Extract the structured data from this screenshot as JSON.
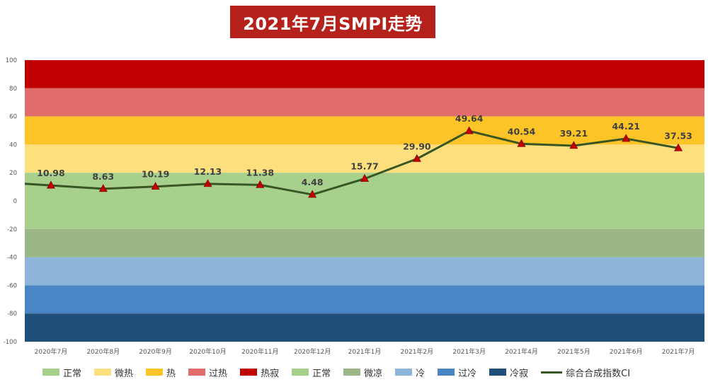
{
  "title": "2021年7月SMPI走势",
  "chart_data": {
    "type": "line",
    "categories": [
      "2020年7月",
      "2020年8月",
      "2020年9月",
      "2020年10月",
      "2020年11月",
      "2020年12月",
      "2021年1月",
      "2021年2月",
      "2021年3月",
      "2021年4月",
      "2021年5月",
      "2021年6月",
      "2021年7月"
    ],
    "series": [
      {
        "name": "综合合成指数CI",
        "values": [
          10.98,
          8.63,
          10.19,
          12.13,
          11.38,
          4.48,
          15.77,
          29.9,
          49.64,
          40.54,
          39.21,
          44.21,
          37.53
        ],
        "color": "#375623",
        "marker_color": "#c00000"
      }
    ],
    "data_labels": [
      "10.98",
      "8.63",
      "10.19",
      "12.13",
      "11.38",
      "4.48",
      "15.77",
      "29.90",
      "49.64",
      "40.54",
      "39.21",
      "44.21",
      "37.53"
    ],
    "y_ticks": [
      "100",
      "80",
      "60",
      "40",
      "20",
      "0",
      "-20",
      "-40",
      "-60",
      "-80",
      "-100"
    ],
    "ylim": [
      -100,
      100
    ],
    "start_value": 12.2,
    "bands": [
      {
        "name": "热寂",
        "from": 80,
        "to": 100,
        "color": "#c00000"
      },
      {
        "name": "过热",
        "from": 60,
        "to": 80,
        "color": "#e06c6c"
      },
      {
        "name": "热",
        "from": 40,
        "to": 60,
        "color": "#fdc428"
      },
      {
        "name": "微热",
        "from": 20,
        "to": 40,
        "color": "#fedf7e"
      },
      {
        "name": "正常",
        "from": 0,
        "to": 20,
        "color": "#a8d08d"
      },
      {
        "name": "正常",
        "from": -20,
        "to": 0,
        "color": "#a8d08d"
      },
      {
        "name": "微凉",
        "from": -40,
        "to": -20,
        "color": "#9bb785"
      },
      {
        "name": "冷",
        "from": -60,
        "to": -40,
        "color": "#8db4d9"
      },
      {
        "name": "过冷",
        "from": -80,
        "to": -60,
        "color": "#4a85c5"
      },
      {
        "name": "冷寂",
        "from": -100,
        "to": -80,
        "color": "#1f4e79"
      }
    ],
    "legend_placement": "bottom"
  },
  "legend": [
    {
      "label": "正常",
      "color": "#a8d08d",
      "kind": "swatch"
    },
    {
      "label": "微热",
      "color": "#fedf7e",
      "kind": "swatch"
    },
    {
      "label": "热",
      "color": "#fdc428",
      "kind": "swatch"
    },
    {
      "label": "过热",
      "color": "#e06c6c",
      "kind": "swatch"
    },
    {
      "label": "热寂",
      "color": "#c00000",
      "kind": "swatch"
    },
    {
      "label": "正常",
      "color": "#a8d08d",
      "kind": "swatch"
    },
    {
      "label": "微凉",
      "color": "#9bb785",
      "kind": "swatch"
    },
    {
      "label": "冷",
      "color": "#8db4d9",
      "kind": "swatch"
    },
    {
      "label": "过冷",
      "color": "#4a85c5",
      "kind": "swatch"
    },
    {
      "label": "冷寂",
      "color": "#1f4e79",
      "kind": "swatch"
    },
    {
      "label": "综合合成指数CI",
      "color": "#375623",
      "kind": "line"
    }
  ]
}
